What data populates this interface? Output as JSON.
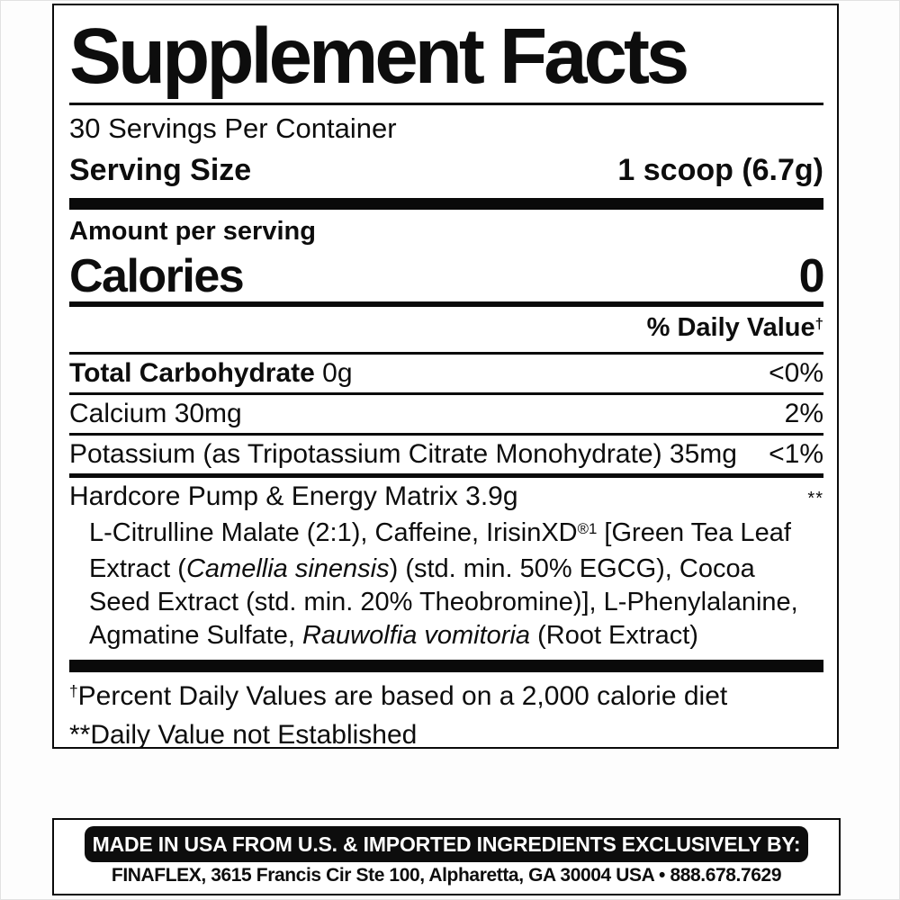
{
  "colors": {
    "ink": "#0d0d0d",
    "paper": "#ffffff",
    "badge_bg": "#0d0d0d",
    "badge_text": "#ffffff"
  },
  "label": {
    "title": "Supplement Facts",
    "servings_per_container": "30 Servings Per Container",
    "serving_size": {
      "label": "Serving Size",
      "value": "1 scoop (6.7g)"
    },
    "amount_per_serving": "Amount per serving",
    "calories": {
      "label": "Calories",
      "value": "0"
    },
    "daily_value_header": {
      "label": "% Daily Value",
      "dagger": "†"
    },
    "rows": [
      {
        "bold": "Total Carbohydrate",
        "rest": " 0g",
        "value": "<0%"
      },
      {
        "bold": "",
        "rest": "Calcium 30mg",
        "value": "2%"
      },
      {
        "bold": "",
        "rest": "Potassium (as Tripotassium Citrate Monohydrate) 35mg",
        "value": "<1%"
      }
    ],
    "matrix": {
      "name": "Hardcore Pump & Energy Matrix 3.9g",
      "value": "**",
      "ingredients": [
        {
          "t": "L-Citrulline Malate (2:1), Caffeine, IrisinXD"
        },
        {
          "t": "®1",
          "sup": true
        },
        {
          "t": " [Green Tea Leaf Extract ("
        },
        {
          "t": "Camellia sinensis",
          "italic": true
        },
        {
          "t": ") (std. min. 50% EGCG), Cocoa Seed Extract (std. min. 20% Theobromine)], L-Phenylalanine, Agmatine Sulfate, "
        },
        {
          "t": "Rauwolfia vomitoria",
          "italic": true
        },
        {
          "t": " (Root Extract)"
        }
      ]
    },
    "footnotes": [
      {
        "prefix": "†",
        "text": "Percent Daily Values are based on a 2,000 calorie diet"
      },
      {
        "prefix": "**",
        "text": "Daily Value not Established"
      }
    ]
  },
  "footer": {
    "badge": "MADE IN USA FROM U.S. & IMPORTED INGREDIENTS EXCLUSIVELY BY:",
    "address": "FINAFLEX, 3615 Francis Cir Ste 100, Alpharetta, GA 30004 USA • 888.678.7629"
  }
}
